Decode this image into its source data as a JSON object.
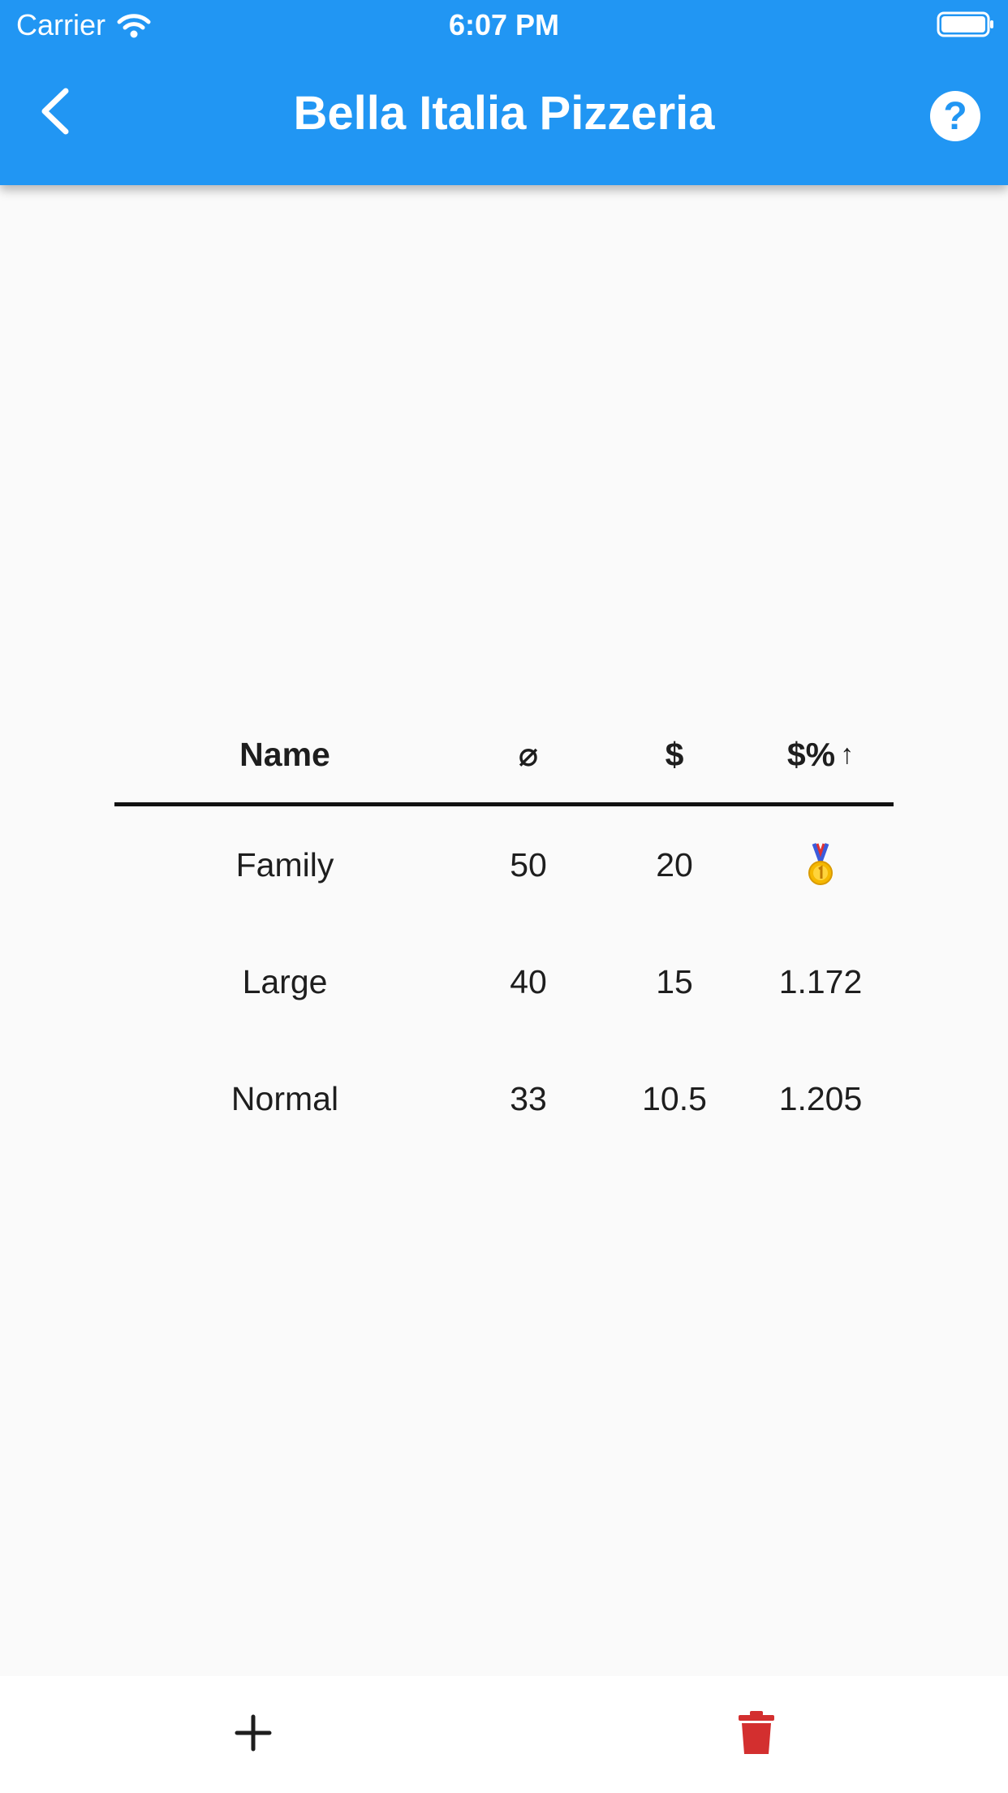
{
  "status_bar": {
    "carrier": "Carrier",
    "time": "6:07 PM"
  },
  "header": {
    "title": "Bella Italia Pizzeria",
    "back_icon": "chevron-left-icon",
    "help_icon": "help-circle-icon",
    "help_glyph": "?",
    "background_color": "#2196f3"
  },
  "table": {
    "columns": {
      "name": "Name",
      "diameter": "⌀",
      "price": "$",
      "ratio": "$%",
      "ratio_sort_indicator": "↑"
    },
    "rows": [
      {
        "name": "Family",
        "diameter": "50",
        "price": "20",
        "ratio": "",
        "ratio_icon": "gold-medal-icon",
        "best": true
      },
      {
        "name": "Large",
        "diameter": "40",
        "price": "15",
        "ratio": "1.172"
      },
      {
        "name": "Normal",
        "diameter": "33",
        "price": "10.5",
        "ratio": "1.205"
      }
    ]
  },
  "bottom_bar": {
    "add_icon": "plus-icon",
    "delete_icon": "trash-icon",
    "delete_color": "#d32f2f"
  }
}
